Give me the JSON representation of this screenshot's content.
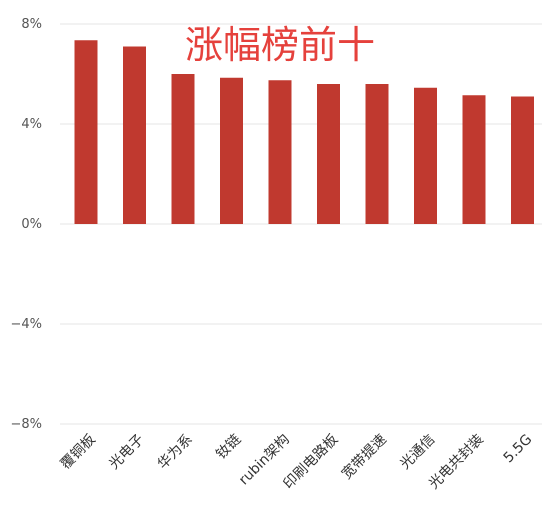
{
  "chart_data": {
    "type": "bar",
    "title": "涨幅榜前十",
    "categories": [
      "覆铜板",
      "光电子",
      "华为系",
      "钕链",
      "rubin架构",
      "印刷电路板",
      "宽带提速",
      "光通信",
      "光电共封装",
      "5.5G"
    ],
    "values": [
      7.35,
      7.1,
      6.0,
      5.85,
      5.75,
      5.6,
      5.6,
      5.45,
      5.15,
      5.1
    ],
    "ylim": [
      -8,
      8
    ],
    "yticks": [
      8,
      4,
      0,
      -4,
      -8
    ],
    "ytick_labels": [
      "8%",
      "4%",
      "0%",
      "−4%",
      "−8%"
    ],
    "grid": true,
    "legend": "none"
  },
  "colors": {
    "bar": "#c0392f",
    "title": "#e5413c",
    "grid": "#e4e4e4",
    "tick_text": "#555555",
    "category_text": "#333333"
  }
}
